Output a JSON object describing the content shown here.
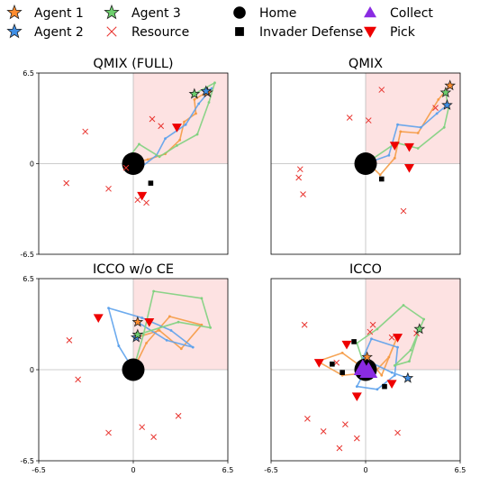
{
  "legend": {
    "items": [
      {
        "label": "Agent 1",
        "marker": "star",
        "color": "#ff8c2e"
      },
      {
        "label": "Agent 3",
        "marker": "star",
        "color": "#6dcf6d"
      },
      {
        "label": "Home",
        "marker": "circle",
        "color": "#000000"
      },
      {
        "label": "Collect",
        "marker": "triangle-up",
        "color": "#8a2be2"
      },
      {
        "label": "Agent 2",
        "marker": "star",
        "color": "#3f8fe6"
      },
      {
        "label": "Resource",
        "marker": "x",
        "color": "#e8332e"
      },
      {
        "label": "Invader Defense",
        "marker": "square",
        "color": "#000000"
      },
      {
        "label": "Pick",
        "marker": "triangle-down",
        "color": "#ee0000"
      }
    ]
  },
  "colors": {
    "agent1": "#f59b45",
    "agent2": "#5da2ec",
    "agent3": "#7fd17f",
    "resource": "#e8332e",
    "region": "#fde2e2",
    "axis": "#bbbbbb"
  },
  "chart_data": [
    {
      "type": "scatter",
      "title": "QMIX (FULL)",
      "xlim": [
        -6.5,
        6.5
      ],
      "ylim": [
        -6.5,
        6.5
      ],
      "xticks": [],
      "yticks": [
        "6.5",
        "0",
        "-6.5"
      ],
      "home": [
        0,
        0
      ],
      "resources": [
        [
          -3.3,
          2.3
        ],
        [
          -4.6,
          -1.4
        ],
        [
          -1.7,
          -1.8
        ],
        [
          1.3,
          3.2
        ],
        [
          1.9,
          2.7
        ],
        [
          0.3,
          -2.6
        ],
        [
          0.9,
          -2.8
        ],
        [
          -0.5,
          -0.3
        ]
      ],
      "invader_defense": [
        [
          1.2,
          -1.4
        ]
      ],
      "pick": [
        [
          0.6,
          -2.3
        ],
        [
          3.0,
          2.6
        ]
      ],
      "collect": [],
      "agents_final": [
        [
          5.1,
          5.1
        ],
        [
          5.0,
          5.2
        ],
        [
          4.2,
          5.0
        ]
      ],
      "paths": [
        [
          [
            0.1,
            0.1
          ],
          [
            1.0,
            0.3
          ],
          [
            2.2,
            0.7
          ],
          [
            3.2,
            1.7
          ],
          [
            3.5,
            3.0
          ],
          [
            4.3,
            3.6
          ],
          [
            4.2,
            4.6
          ],
          [
            5.0,
            5.1
          ]
        ],
        [
          [
            0.0,
            0.0
          ],
          [
            0.6,
            -0.2
          ],
          [
            1.6,
            0.6
          ],
          [
            2.2,
            1.8
          ],
          [
            3.6,
            2.8
          ],
          [
            4.5,
            4.3
          ],
          [
            5.4,
            5.4
          ],
          [
            5.0,
            5.2
          ]
        ],
        [
          [
            0.0,
            0.0
          ],
          [
            -0.2,
            0.6
          ],
          [
            0.4,
            1.4
          ],
          [
            1.8,
            0.5
          ],
          [
            3.0,
            1.3
          ],
          [
            4.4,
            2.1
          ],
          [
            5.2,
            4.4
          ],
          [
            5.6,
            5.8
          ],
          [
            4.2,
            5.0
          ]
        ]
      ]
    },
    {
      "type": "scatter",
      "title": "QMIX",
      "xlim": [
        -6.5,
        6.5
      ],
      "ylim": [
        -6.5,
        6.5
      ],
      "xticks": [],
      "yticks": [],
      "home": [
        0,
        0
      ],
      "resources": [
        [
          1.1,
          5.3
        ],
        [
          -1.1,
          3.3
        ],
        [
          0.2,
          3.1
        ],
        [
          -4.5,
          -0.4
        ],
        [
          -4.6,
          -1.0
        ],
        [
          -4.3,
          -2.2
        ],
        [
          2.6,
          -3.4
        ],
        [
          4.8,
          4.0
        ]
      ],
      "invader_defense": [
        [
          1.1,
          -1.1
        ]
      ],
      "pick": [
        [
          2.0,
          1.3
        ],
        [
          3.0,
          -0.3
        ],
        [
          3.0,
          1.2
        ]
      ],
      "collect": [],
      "agents_final": [
        [
          5.8,
          5.6
        ],
        [
          5.6,
          4.2
        ],
        [
          5.5,
          5.1
        ]
      ],
      "paths": [
        [
          [
            0.1,
            0.1
          ],
          [
            1.0,
            -0.8
          ],
          [
            2.0,
            0.4
          ],
          [
            2.4,
            2.3
          ],
          [
            3.6,
            2.2
          ],
          [
            5.0,
            4.6
          ],
          [
            5.8,
            5.6
          ]
        ],
        [
          [
            0.0,
            0.0
          ],
          [
            1.6,
            0.6
          ],
          [
            2.2,
            2.8
          ],
          [
            3.8,
            2.6
          ],
          [
            4.9,
            3.6
          ],
          [
            5.6,
            4.2
          ]
        ],
        [
          [
            0.0,
            0.0
          ],
          [
            2.1,
            1.5
          ],
          [
            3.6,
            1.1
          ],
          [
            5.4,
            2.6
          ],
          [
            5.7,
            4.0
          ],
          [
            5.5,
            5.1
          ]
        ]
      ]
    },
    {
      "type": "scatter",
      "title": "ICCO w/o CE",
      "xlim": [
        -6.5,
        6.5
      ],
      "ylim": [
        -6.5,
        6.5
      ],
      "xticks": [
        "-6.5",
        "0",
        "6.5"
      ],
      "yticks": [
        "6.5",
        "0",
        "-6.5"
      ],
      "home": [
        0,
        0
      ],
      "resources": [
        [
          -4.4,
          2.1
        ],
        [
          -3.8,
          -0.7
        ],
        [
          -1.7,
          -4.5
        ],
        [
          0.6,
          -4.1
        ],
        [
          1.4,
          -4.8
        ],
        [
          3.1,
          -3.3
        ]
      ],
      "invader_defense": [],
      "pick": [
        [
          -2.4,
          3.7
        ],
        [
          1.1,
          3.4
        ]
      ],
      "collect": [],
      "agents_final": [
        [
          0.3,
          3.4
        ],
        [
          0.2,
          2.3
        ],
        [
          0.3,
          2.5
        ]
      ],
      "paths": [
        [
          [
            0.0,
            0.0
          ],
          [
            0.9,
            1.9
          ],
          [
            2.5,
            3.8
          ],
          [
            4.7,
            3.2
          ],
          [
            3.3,
            1.5
          ],
          [
            1.8,
            2.8
          ],
          [
            0.2,
            2.3
          ]
        ],
        [
          [
            0.0,
            0.0
          ],
          [
            -1.0,
            1.7
          ],
          [
            -1.7,
            4.4
          ],
          [
            0.6,
            3.7
          ],
          [
            2.6,
            2.8
          ],
          [
            4.1,
            1.6
          ],
          [
            2.3,
            2.1
          ],
          [
            0.3,
            3.4
          ]
        ],
        [
          [
            0.0,
            0.0
          ],
          [
            0.7,
            2.5
          ],
          [
            1.4,
            5.6
          ],
          [
            4.7,
            5.1
          ],
          [
            5.3,
            3.0
          ],
          [
            3.1,
            3.4
          ],
          [
            0.3,
            2.5
          ]
        ]
      ]
    },
    {
      "type": "scatter",
      "title": "ICCO",
      "xlim": [
        -6.5,
        6.5
      ],
      "ylim": [
        -6.5,
        6.5
      ],
      "xticks": [
        "-6.5",
        "0",
        "6.5"
      ],
      "yticks": [],
      "home": [
        0,
        0
      ],
      "resources": [
        [
          -4.2,
          3.2
        ],
        [
          0.5,
          3.2
        ],
        [
          0.3,
          2.7
        ],
        [
          1.8,
          2.3
        ],
        [
          3.5,
          2.6
        ],
        [
          -2.0,
          0.5
        ],
        [
          -4.0,
          -3.5
        ],
        [
          -2.9,
          -4.4
        ],
        [
          -1.4,
          -3.9
        ],
        [
          -0.6,
          -4.9
        ],
        [
          -1.8,
          -5.6
        ],
        [
          2.2,
          -4.5
        ]
      ],
      "invader_defense": [
        [
          -0.8,
          2.0
        ],
        [
          -2.3,
          0.4
        ],
        [
          -1.6,
          -0.2
        ],
        [
          1.3,
          -1.2
        ]
      ],
      "pick": [
        [
          -3.2,
          0.5
        ],
        [
          -1.3,
          1.8
        ],
        [
          2.2,
          2.3
        ],
        [
          -0.6,
          -1.9
        ],
        [
          1.8,
          -1.0
        ]
      ],
      "collect": [
        [
          -0.2,
          0.1
        ],
        [
          0.2,
          -0.1
        ]
      ],
      "agents_final": [
        [
          0.1,
          0.9
        ],
        [
          2.9,
          -0.6
        ],
        [
          3.7,
          2.9
        ]
      ],
      "paths": [
        [
          [
            0.0,
            0.0
          ],
          [
            -1.6,
            1.2
          ],
          [
            -3.3,
            0.6
          ],
          [
            -1.6,
            -0.4
          ],
          [
            0.6,
            -0.2
          ],
          [
            1.6,
            0.9
          ],
          [
            2.2,
            2.4
          ],
          [
            1.1,
            -0.4
          ],
          [
            0.1,
            0.9
          ]
        ],
        [
          [
            0.0,
            0.0
          ],
          [
            -0.6,
            -1.2
          ],
          [
            0.8,
            -1.4
          ],
          [
            2.0,
            -0.4
          ],
          [
            2.2,
            1.6
          ],
          [
            0.4,
            2.2
          ],
          [
            -0.2,
            0.8
          ],
          [
            1.8,
            -0.2
          ],
          [
            2.9,
            -0.6
          ]
        ],
        [
          [
            0.0,
            0.0
          ],
          [
            -0.6,
            1.9
          ],
          [
            0.8,
            2.9
          ],
          [
            2.6,
            4.6
          ],
          [
            4.0,
            3.6
          ],
          [
            3.1,
            1.4
          ],
          [
            2.0,
            0.3
          ],
          [
            3.0,
            0.6
          ],
          [
            3.7,
            2.9
          ]
        ]
      ]
    }
  ]
}
